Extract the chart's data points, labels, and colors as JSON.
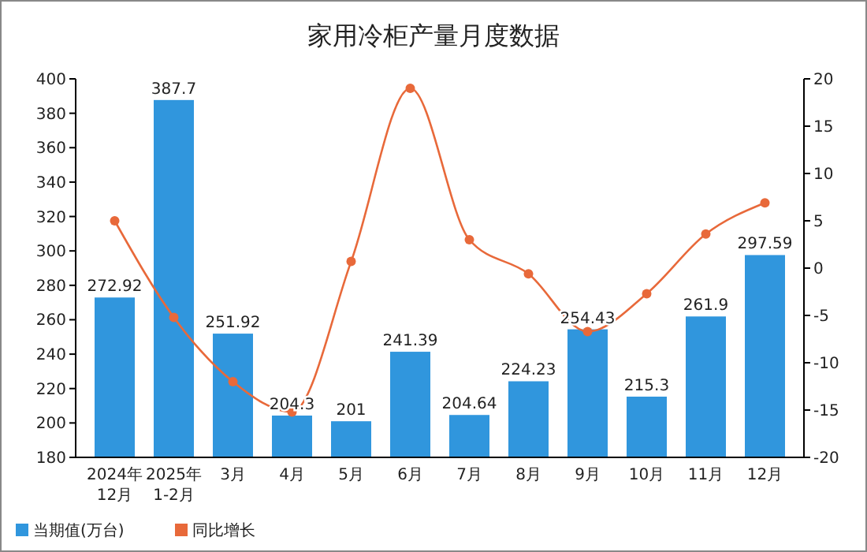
{
  "chart_data": {
    "type": "bar",
    "title": "家用冷柜产量月度数据",
    "categories": [
      "2024年\n12月",
      "2025年\n1-2月",
      "3月",
      "4月",
      "5月",
      "6月",
      "7月",
      "8月",
      "9月",
      "10月",
      "11月",
      "12月"
    ],
    "series": [
      {
        "name": "当期值(万台)",
        "color": "#3096dd",
        "values": [
          272.92,
          387.7,
          251.92,
          204.3,
          201,
          241.39,
          204.64,
          224.23,
          254.43,
          215.3,
          261.9,
          297.59
        ],
        "value_labels": [
          "272.92",
          "387.7",
          "251.92",
          "204.3",
          "201",
          "241.39",
          "204.64",
          "224.23",
          "254.43",
          "215.3",
          "261.9",
          "297.59"
        ]
      },
      {
        "name": "同比增长",
        "type": "line",
        "axis": "y2",
        "color": "#e8693a",
        "values": [
          5.0,
          -5.2,
          -12.0,
          -15.2,
          0.7,
          19.0,
          3.0,
          -0.6,
          -6.7,
          -2.7,
          3.6,
          6.9
        ]
      }
    ],
    "ylim": [
      180,
      400
    ],
    "yticks": [
      180,
      200,
      220,
      240,
      260,
      280,
      300,
      320,
      340,
      360,
      380,
      400
    ],
    "y2lim": [
      -20,
      20
    ],
    "y2ticks": [
      -20,
      -15,
      -10,
      -5,
      0,
      5,
      10,
      15,
      20
    ],
    "legend": "bottom left",
    "marker": "circle",
    "grid": false
  }
}
